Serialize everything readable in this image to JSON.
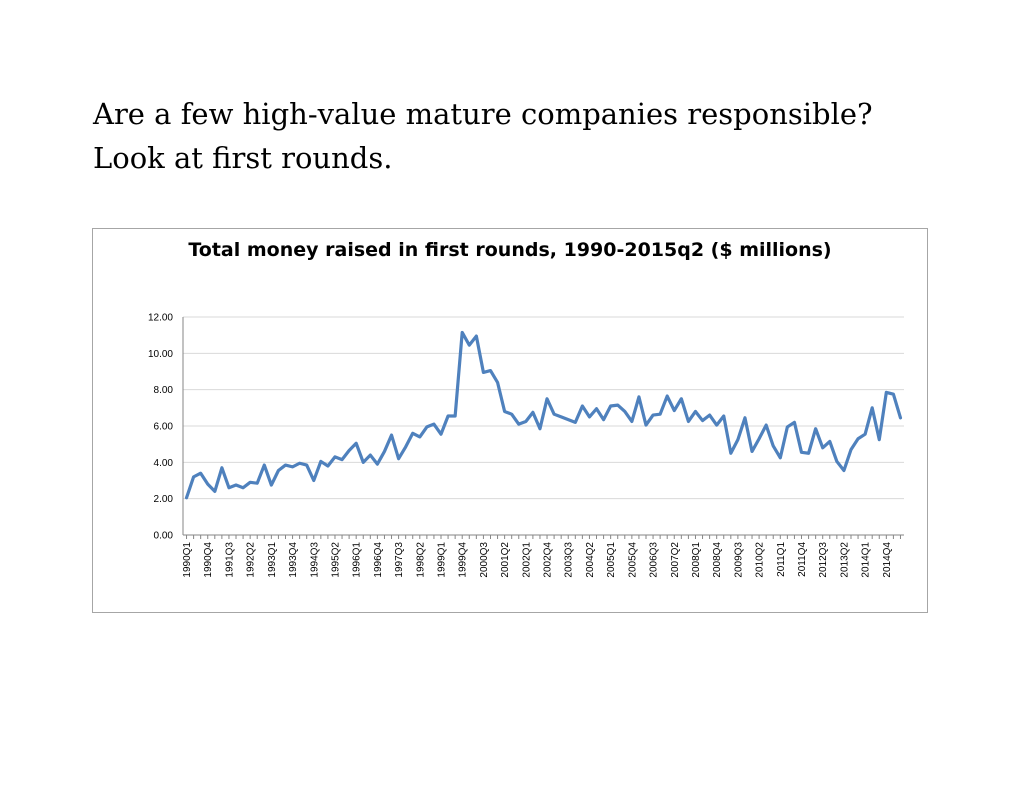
{
  "page": {
    "heading": "Are a few high-value mature companies responsible? Look at first rounds."
  },
  "chart_data": {
    "type": "line",
    "title": "Total money raised in first rounds, 1990-2015q2 ($ millions)",
    "xlabel": "",
    "ylabel": "",
    "ylim": [
      0,
      12
    ],
    "yticks": [
      "0.00",
      "2.00",
      "4.00",
      "6.00",
      "8.00",
      "10.00",
      "12.00"
    ],
    "grid": true,
    "legend": "none",
    "line_color": "#4f81bd",
    "x": [
      "1990Q1",
      "1990Q2",
      "1990Q3",
      "1990Q4",
      "1991Q1",
      "1991Q2",
      "1991Q3",
      "1991Q4",
      "1992Q1",
      "1992Q2",
      "1992Q3",
      "1992Q4",
      "1993Q1",
      "1993Q2",
      "1993Q3",
      "1993Q4",
      "1994Q1",
      "1994Q2",
      "1994Q3",
      "1994Q4",
      "1995Q1",
      "1995Q2",
      "1995Q3",
      "1995Q4",
      "1996Q1",
      "1996Q2",
      "1996Q3",
      "1996Q4",
      "1997Q1",
      "1997Q2",
      "1997Q3",
      "1997Q4",
      "1998Q1",
      "1998Q2",
      "1998Q3",
      "1998Q4",
      "1999Q1",
      "1999Q2",
      "1999Q3",
      "1999Q4",
      "2000Q1",
      "2000Q2",
      "2000Q3",
      "2000Q4",
      "2001Q1",
      "2001Q2",
      "2001Q3",
      "2001Q4",
      "2002Q1",
      "2002Q2",
      "2002Q3",
      "2002Q4",
      "2003Q1",
      "2003Q2",
      "2003Q3",
      "2003Q4",
      "2004Q1",
      "2004Q2",
      "2004Q3",
      "2004Q4",
      "2005Q1",
      "2005Q2",
      "2005Q3",
      "2005Q4",
      "2006Q1",
      "2006Q2",
      "2006Q3",
      "2006Q4",
      "2007Q1",
      "2007Q2",
      "2007Q3",
      "2007Q4",
      "2008Q1",
      "2008Q2",
      "2008Q3",
      "2008Q4",
      "2009Q1",
      "2009Q2",
      "2009Q3",
      "2009Q4",
      "2010Q1",
      "2010Q2",
      "2010Q3",
      "2010Q4",
      "2011Q1",
      "2011Q2",
      "2011Q3",
      "2011Q4",
      "2012Q1",
      "2012Q2",
      "2012Q3",
      "2012Q4",
      "2013Q1",
      "2013Q2",
      "2013Q3",
      "2013Q4",
      "2014Q1",
      "2014Q2",
      "2014Q3",
      "2014Q4",
      "2015Q1",
      "2015Q2"
    ],
    "x_tick_labels": [
      "1990Q1",
      "1990Q4",
      "1991Q3",
      "1992Q2",
      "1993Q1",
      "1993Q4",
      "1994Q3",
      "1995Q2",
      "1996Q1",
      "1996Q4",
      "1997Q3",
      "1998Q2",
      "1999Q1",
      "1999Q4",
      "2000Q3",
      "2001Q2",
      "2002Q1",
      "2002Q4",
      "2003Q3",
      "2004Q2",
      "2005Q1",
      "2005Q4",
      "2006Q3",
      "2007Q2",
      "2008Q1",
      "2008Q4",
      "2009Q3",
      "2010Q2",
      "2011Q1",
      "2011Q4",
      "2012Q3",
      "2013Q2",
      "2014Q1",
      "2014Q4"
    ],
    "series": [
      {
        "values": [
          2.05,
          3.2,
          3.4,
          2.8,
          2.4,
          3.7,
          2.6,
          2.75,
          2.6,
          2.9,
          2.85,
          3.85,
          2.75,
          3.55,
          3.85,
          3.75,
          3.95,
          3.85,
          3.0,
          4.05,
          3.8,
          4.3,
          4.15,
          4.65,
          5.05,
          4.0,
          4.4,
          3.9,
          4.6,
          5.5,
          4.2,
          4.85,
          5.6,
          5.4,
          5.95,
          6.1,
          5.55,
          6.55,
          6.55,
          11.15,
          10.45,
          10.95,
          8.95,
          9.05,
          8.4,
          6.8,
          6.65,
          6.1,
          6.25,
          6.75,
          5.85,
          7.5,
          6.65,
          6.5,
          6.35,
          6.2,
          7.1,
          6.5,
          6.95,
          6.35,
          7.1,
          7.15,
          6.8,
          6.25,
          7.6,
          6.05,
          6.6,
          6.65,
          7.65,
          6.85,
          7.5,
          6.25,
          6.8,
          6.3,
          6.6,
          6.05,
          6.55,
          4.5,
          5.25,
          6.45,
          4.6,
          5.3,
          6.05,
          4.9,
          4.25,
          5.95,
          6.2,
          4.55,
          4.5,
          5.85,
          4.8,
          5.15,
          4.05,
          3.55,
          4.7,
          5.3,
          5.55,
          7.0,
          5.25,
          7.85,
          7.75,
          6.45
        ]
      }
    ]
  }
}
